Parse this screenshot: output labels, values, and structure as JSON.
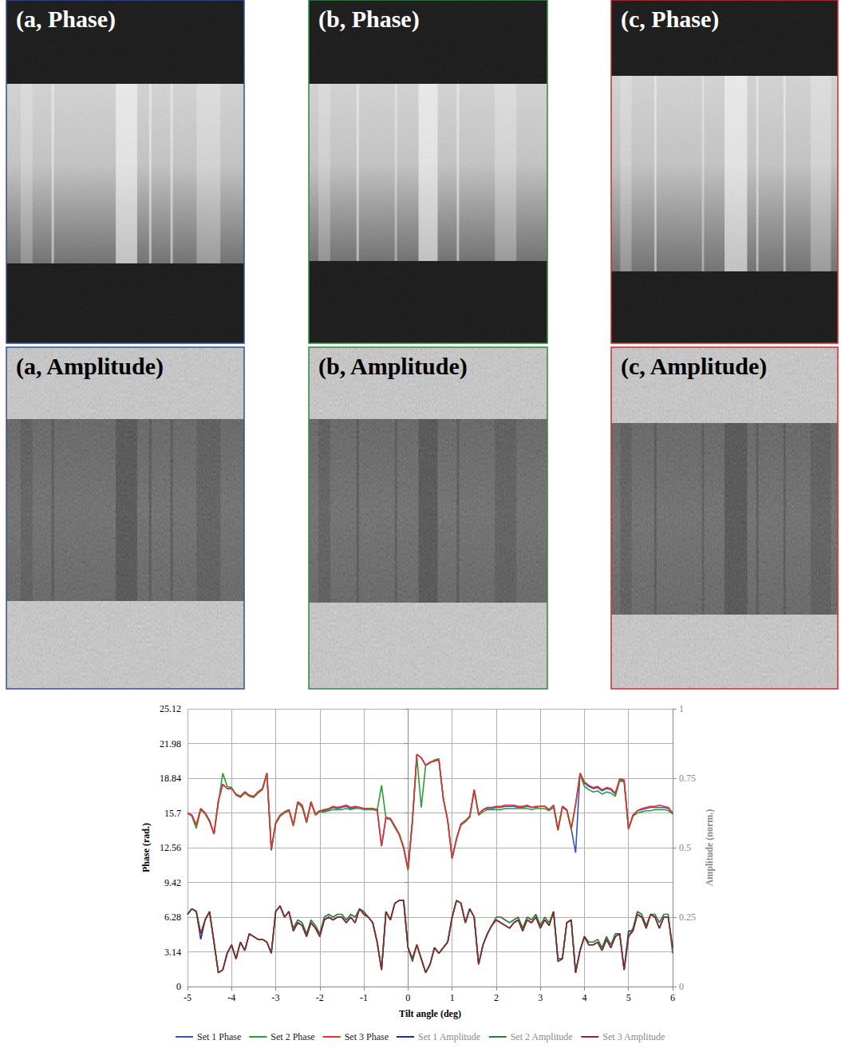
{
  "panels": [
    {
      "label": "(a, Phase)",
      "color": "#2f4f9f"
    },
    {
      "label": "(b, Phase)",
      "color": "#2e8b3e"
    },
    {
      "label": "(c, Phase)",
      "color": "#d42a2a"
    },
    {
      "label": "(a, Amplitude)",
      "color": "#2f4f9f"
    },
    {
      "label": "(b, Amplitude)",
      "color": "#2e8b3e"
    },
    {
      "label": "(c, Amplitude)",
      "color": "#d42a2a"
    }
  ],
  "chart_data": {
    "type": "line",
    "x_label": "Tilt angle (deg)",
    "y_label": "Phase (rad.)",
    "y2_label": "Amplitude (norm.)",
    "xlim": [
      -5,
      6
    ],
    "xticks": [
      -5,
      -4,
      -3,
      -2,
      -1,
      0,
      1,
      2,
      3,
      4,
      5,
      6
    ],
    "ylim": [
      0,
      25.12
    ],
    "yticks": [
      0,
      3.14,
      6.28,
      9.42,
      12.56,
      15.7,
      18.84,
      21.98,
      25.12
    ],
    "y2lim": [
      0,
      1
    ],
    "y2ticks": [
      0,
      0.25,
      0.5,
      0.75,
      1
    ],
    "grid": true,
    "legend": "bottom",
    "x": [
      -5,
      -4.9,
      -4.8,
      -4.7,
      -4.6,
      -4.5,
      -4.4,
      -4.3,
      -4.2,
      -4.1,
      -4,
      -3.9,
      -3.8,
      -3.7,
      -3.6,
      -3.5,
      -3.4,
      -3.3,
      -3.2,
      -3.1,
      -3,
      -2.9,
      -2.8,
      -2.7,
      -2.6,
      -2.5,
      -2.4,
      -2.3,
      -2.2,
      -2.1,
      -2,
      -1.9,
      -1.8,
      -1.7,
      -1.6,
      -1.5,
      -1.4,
      -1.3,
      -1.2,
      -1.1,
      -1,
      -0.9,
      -0.8,
      -0.7,
      -0.6,
      -0.5,
      -0.4,
      -0.3,
      -0.2,
      -0.1,
      0,
      0.1,
      0.2,
      0.3,
      0.4,
      0.5,
      0.6,
      0.7,
      0.8,
      0.9,
      1,
      1.1,
      1.2,
      1.3,
      1.4,
      1.5,
      1.6,
      1.7,
      1.8,
      1.9,
      2,
      2.1,
      2.2,
      2.3,
      2.4,
      2.5,
      2.6,
      2.7,
      2.8,
      2.9,
      3,
      3.1,
      3.2,
      3.3,
      3.4,
      3.5,
      3.6,
      3.7,
      3.8,
      3.9,
      4,
      4.1,
      4.2,
      4.3,
      4.4,
      4.5,
      4.6,
      4.7,
      4.8,
      4.9,
      5,
      5.1,
      5.2,
      5.3,
      5.4,
      5.5,
      5.6,
      5.7,
      5.8,
      5.9,
      6
    ],
    "series": [
      {
        "name": "Set 1 Phase",
        "color": "#2f55c8",
        "values": [
          15.7,
          15.5,
          14.6,
          16.1,
          15.7,
          15.0,
          13.8,
          16.8,
          18.3,
          17.9,
          17.9,
          17.4,
          17.2,
          17.6,
          17.3,
          17.2,
          17.6,
          17.9,
          19.3,
          12.3,
          14.8,
          15.5,
          15.8,
          16.0,
          14.6,
          16.7,
          16.4,
          14.9,
          16.7,
          15.6,
          15.9,
          15.9,
          16.0,
          16.2,
          16.1,
          16.2,
          16.3,
          16.1,
          16.2,
          16.2,
          16.1,
          16.1,
          16.1,
          16.0,
          12.7,
          15.3,
          15.2,
          14.5,
          13.8,
          12.6,
          10.6,
          15.0,
          21.0,
          20.7,
          20.0,
          20.3,
          20.4,
          20.5,
          17.0,
          15.0,
          11.6,
          13.4,
          14.7,
          15.0,
          15.4,
          17.8,
          15.6,
          16.0,
          16.1,
          16.1,
          16.2,
          16.2,
          16.3,
          16.3,
          16.3,
          16.2,
          16.2,
          16.3,
          16.2,
          16.2,
          16.3,
          16.3,
          16.0,
          16.4,
          14.2,
          16.3,
          16.0,
          14.3,
          12.1,
          19.3,
          18.4,
          18.1,
          17.9,
          18.0,
          17.7,
          17.9,
          17.8,
          17.4,
          18.7,
          18.6,
          14.3,
          15.5,
          15.9,
          16.0,
          16.1,
          16.2,
          16.2,
          16.2,
          16.2,
          16.1,
          15.7
        ]
      },
      {
        "name": "Set 2 Phase",
        "color": "#2e9a3a",
        "values": [
          15.7,
          15.4,
          14.3,
          16.0,
          15.6,
          14.9,
          13.8,
          16.6,
          19.3,
          18.1,
          18.0,
          17.3,
          17.1,
          17.5,
          17.2,
          17.1,
          17.5,
          17.8,
          19.2,
          12.5,
          14.7,
          15.4,
          15.7,
          15.9,
          14.5,
          16.6,
          16.2,
          14.8,
          16.6,
          15.5,
          15.8,
          15.8,
          15.9,
          16.0,
          16.0,
          16.0,
          16.1,
          16.0,
          16.1,
          16.1,
          16.0,
          16.0,
          16.0,
          15.9,
          18.2,
          15.2,
          15.1,
          14.4,
          13.7,
          12.5,
          10.5,
          15.0,
          20.8,
          16.2,
          20.0,
          20.2,
          20.5,
          20.6,
          17.0,
          15.0,
          11.6,
          13.3,
          14.6,
          14.9,
          15.3,
          17.7,
          15.5,
          15.8,
          16.0,
          16.0,
          16.0,
          16.0,
          16.1,
          16.1,
          16.1,
          16.1,
          16.1,
          16.1,
          16.0,
          16.1,
          16.1,
          16.1,
          15.9,
          16.2,
          14.1,
          16.2,
          15.9,
          14.2,
          16.4,
          19.2,
          18.1,
          17.8,
          17.6,
          17.7,
          17.4,
          17.6,
          17.5,
          17.2,
          18.6,
          18.5,
          14.2,
          15.4,
          15.7,
          15.8,
          15.9,
          15.9,
          16.0,
          16.0,
          16.0,
          15.9,
          15.6
        ]
      },
      {
        "name": "Set 3 Phase",
        "color": "#e8312a",
        "values": [
          15.7,
          15.5,
          14.6,
          16.1,
          15.7,
          15.0,
          13.8,
          16.8,
          18.3,
          17.9,
          17.9,
          17.4,
          17.2,
          17.6,
          17.3,
          17.2,
          17.6,
          17.9,
          19.3,
          12.5,
          14.8,
          15.5,
          15.8,
          16.0,
          14.6,
          16.7,
          16.4,
          14.9,
          16.7,
          15.6,
          15.9,
          16.0,
          16.1,
          16.3,
          16.2,
          16.3,
          16.4,
          16.2,
          16.3,
          16.2,
          16.1,
          16.1,
          16.1,
          16.0,
          12.7,
          15.3,
          15.2,
          14.5,
          13.8,
          12.6,
          10.6,
          15.0,
          21.0,
          20.7,
          20.0,
          20.3,
          20.4,
          20.5,
          17.0,
          15.0,
          11.6,
          13.4,
          14.7,
          15.0,
          15.4,
          17.8,
          15.6,
          16.0,
          16.2,
          16.2,
          16.3,
          16.3,
          16.4,
          16.4,
          16.4,
          16.3,
          16.3,
          16.4,
          16.2,
          16.3,
          16.3,
          16.3,
          16.0,
          16.4,
          14.2,
          16.3,
          16.0,
          14.3,
          16.5,
          19.3,
          18.5,
          18.2,
          18.0,
          18.1,
          17.8,
          18.0,
          17.9,
          17.5,
          18.8,
          18.7,
          14.3,
          15.5,
          15.9,
          16.1,
          16.2,
          16.3,
          16.3,
          16.4,
          16.3,
          16.2,
          15.7
        ]
      },
      {
        "name": "Set 1 Amplitude",
        "color": "#25308a",
        "axis": "y2",
        "values": [
          0.26,
          0.28,
          0.27,
          0.17,
          0.24,
          0.27,
          0.16,
          0.05,
          0.06,
          0.12,
          0.15,
          0.1,
          0.16,
          0.13,
          0.19,
          0.18,
          0.17,
          0.17,
          0.16,
          0.12,
          0.27,
          0.29,
          0.25,
          0.27,
          0.2,
          0.23,
          0.22,
          0.18,
          0.23,
          0.21,
          0.18,
          0.24,
          0.25,
          0.24,
          0.25,
          0.25,
          0.23,
          0.25,
          0.23,
          0.28,
          0.26,
          0.25,
          0.23,
          0.16,
          0.06,
          0.27,
          0.24,
          0.3,
          0.31,
          0.31,
          0.14,
          0.1,
          0.15,
          0.1,
          0.05,
          0.08,
          0.14,
          0.12,
          0.14,
          0.16,
          0.25,
          0.31,
          0.3,
          0.23,
          0.28,
          0.25,
          0.08,
          0.15,
          0.19,
          0.22,
          0.24,
          0.23,
          0.22,
          0.21,
          0.23,
          0.24,
          0.2,
          0.24,
          0.23,
          0.25,
          0.21,
          0.24,
          0.22,
          0.27,
          0.09,
          0.1,
          0.23,
          0.24,
          0.05,
          0.13,
          0.18,
          0.15,
          0.15,
          0.16,
          0.13,
          0.17,
          0.14,
          0.18,
          0.19,
          0.06,
          0.2,
          0.2,
          0.26,
          0.25,
          0.21,
          0.26,
          0.25,
          0.21,
          0.25,
          0.25,
          0.14
        ]
      },
      {
        "name": "Set 2 Amplitude",
        "color": "#2d7a3a",
        "axis": "y2",
        "values": [
          0.26,
          0.28,
          0.27,
          0.19,
          0.24,
          0.27,
          0.16,
          0.05,
          0.06,
          0.12,
          0.15,
          0.1,
          0.16,
          0.13,
          0.19,
          0.18,
          0.17,
          0.17,
          0.16,
          0.12,
          0.27,
          0.29,
          0.25,
          0.27,
          0.21,
          0.24,
          0.23,
          0.19,
          0.24,
          0.22,
          0.19,
          0.25,
          0.26,
          0.25,
          0.26,
          0.26,
          0.24,
          0.26,
          0.25,
          0.28,
          0.27,
          0.25,
          0.23,
          0.16,
          0.06,
          0.27,
          0.24,
          0.3,
          0.31,
          0.31,
          0.14,
          0.09,
          0.15,
          0.1,
          0.05,
          0.08,
          0.14,
          0.12,
          0.14,
          0.16,
          0.25,
          0.31,
          0.3,
          0.23,
          0.28,
          0.25,
          0.08,
          0.15,
          0.19,
          0.22,
          0.25,
          0.25,
          0.24,
          0.23,
          0.24,
          0.25,
          0.21,
          0.25,
          0.24,
          0.26,
          0.22,
          0.25,
          0.23,
          0.27,
          0.1,
          0.1,
          0.23,
          0.24,
          0.05,
          0.13,
          0.18,
          0.16,
          0.16,
          0.17,
          0.14,
          0.18,
          0.15,
          0.19,
          0.19,
          0.06,
          0.18,
          0.21,
          0.27,
          0.26,
          0.22,
          0.26,
          0.26,
          0.23,
          0.26,
          0.26,
          0.12
        ]
      },
      {
        "name": "Set 3 Amplitude",
        "color": "#8b2a2a",
        "axis": "y2",
        "values": [
          0.26,
          0.28,
          0.27,
          0.19,
          0.24,
          0.27,
          0.16,
          0.05,
          0.06,
          0.12,
          0.15,
          0.1,
          0.16,
          0.13,
          0.19,
          0.18,
          0.17,
          0.17,
          0.16,
          0.12,
          0.27,
          0.29,
          0.25,
          0.27,
          0.2,
          0.23,
          0.22,
          0.18,
          0.23,
          0.21,
          0.18,
          0.24,
          0.25,
          0.24,
          0.25,
          0.25,
          0.23,
          0.25,
          0.23,
          0.28,
          0.26,
          0.25,
          0.23,
          0.16,
          0.06,
          0.27,
          0.24,
          0.3,
          0.31,
          0.31,
          0.14,
          0.1,
          0.15,
          0.1,
          0.05,
          0.08,
          0.14,
          0.12,
          0.14,
          0.16,
          0.25,
          0.31,
          0.3,
          0.23,
          0.28,
          0.25,
          0.08,
          0.15,
          0.19,
          0.22,
          0.24,
          0.23,
          0.22,
          0.21,
          0.23,
          0.24,
          0.2,
          0.24,
          0.23,
          0.25,
          0.21,
          0.24,
          0.22,
          0.27,
          0.1,
          0.1,
          0.23,
          0.24,
          0.05,
          0.13,
          0.18,
          0.15,
          0.15,
          0.16,
          0.13,
          0.17,
          0.14,
          0.18,
          0.19,
          0.06,
          0.18,
          0.2,
          0.26,
          0.25,
          0.21,
          0.26,
          0.25,
          0.21,
          0.25,
          0.25,
          0.14
        ]
      }
    ]
  }
}
